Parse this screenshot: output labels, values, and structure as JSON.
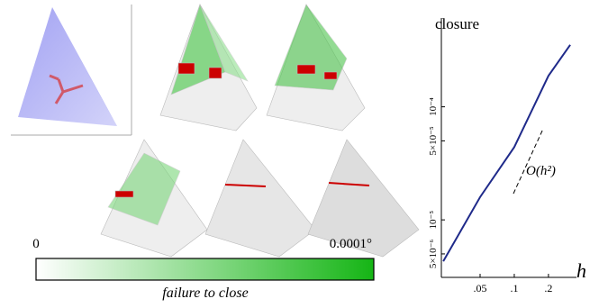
{
  "chart_data": {
    "type": "line",
    "title": "closure",
    "x_label": "h",
    "annotation": "O(h²)",
    "xscale": "log",
    "yscale": "log",
    "x": [
      0.0237,
      0.05,
      0.1,
      0.2,
      0.311
    ],
    "series": [
      {
        "color": "#1f2a8a",
        "values": [
          4.3e-06,
          1.59e-05,
          4.4e-05,
          0.000188,
          0.000353
        ]
      }
    ],
    "xlim": [
      0.0228,
      0.353
    ],
    "ylim": [
      3.1e-06,
      0.00061
    ],
    "xticks": [
      {
        "value": 0.05,
        "label": ".05"
      },
      {
        "value": 0.1,
        "label": ".1"
      },
      {
        "value": 0.2,
        "label": ".2"
      }
    ],
    "yticks": [
      {
        "value": 5e-06,
        "label": "5×10⁻⁶"
      },
      {
        "value": 1e-05,
        "label": "10⁻⁵"
      },
      {
        "value": 5e-05,
        "label": "5×10⁻⁵"
      },
      {
        "value": 0.0001,
        "label": "10⁻⁴"
      }
    ]
  },
  "colorbar": {
    "min_label": "0",
    "max_label": "0.0001°",
    "caption": "failure to close"
  }
}
